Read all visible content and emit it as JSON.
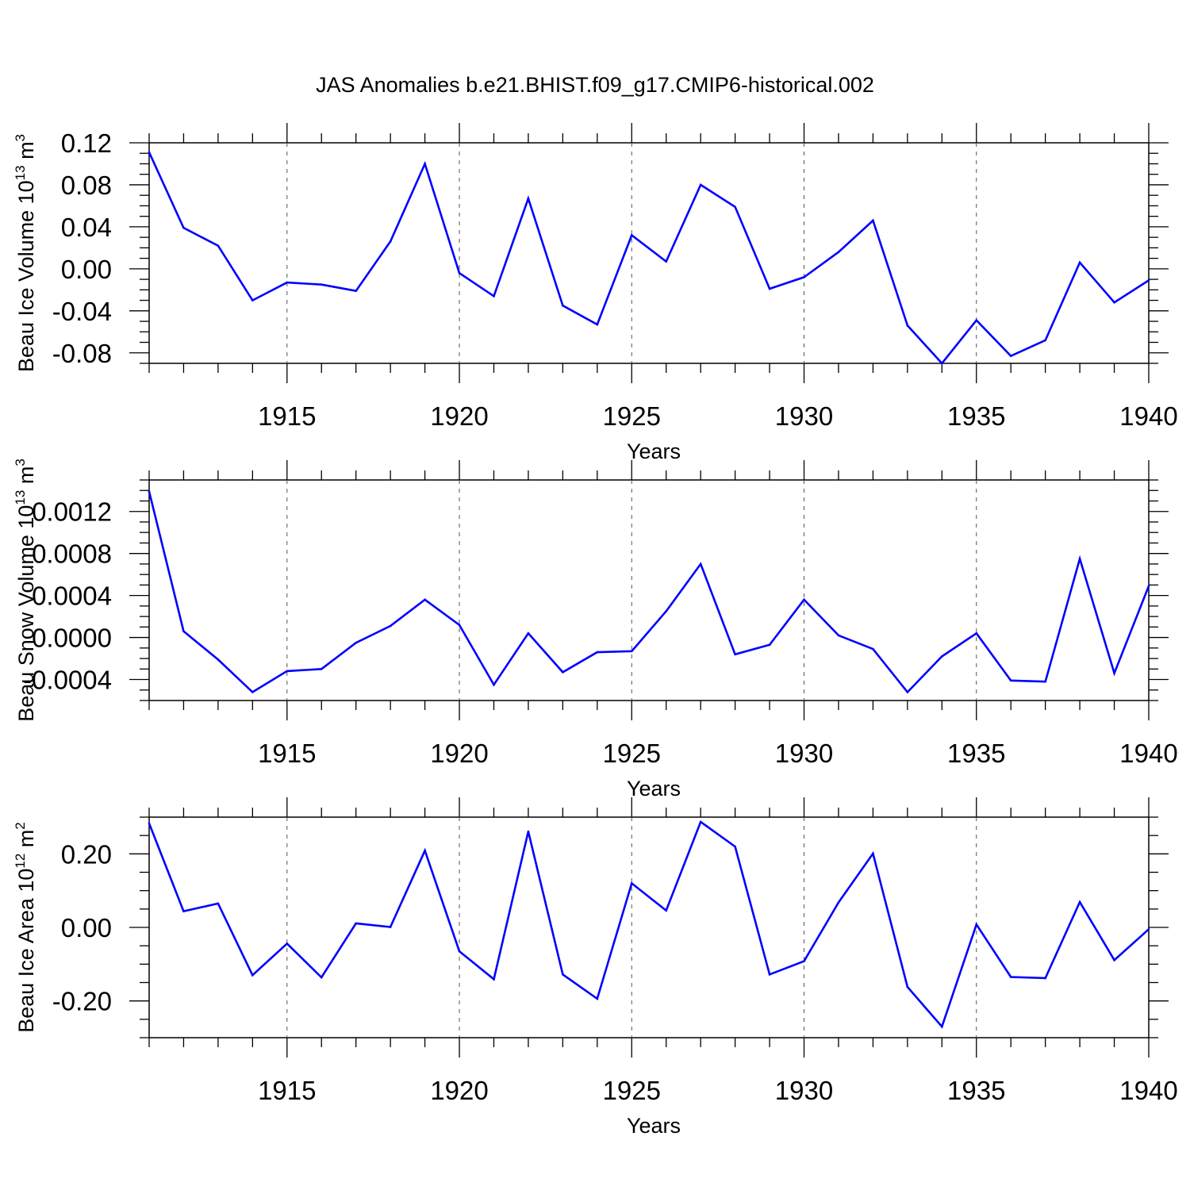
{
  "chart_data": {
    "title": "JAS Anomalies b.e21.BHIST.f09_g17.CMIP6-historical.002",
    "type": "line",
    "line_color": "#0000ff",
    "x": [
      1911,
      1912,
      1913,
      1914,
      1915,
      1916,
      1917,
      1918,
      1919,
      1920,
      1921,
      1922,
      1923,
      1924,
      1925,
      1926,
      1927,
      1928,
      1929,
      1930,
      1931,
      1932,
      1933,
      1934,
      1935,
      1936,
      1937,
      1938,
      1939,
      1940
    ],
    "xlim": [
      1911,
      1940
    ],
    "xticks": [
      1915,
      1920,
      1925,
      1930,
      1935,
      1940
    ],
    "xlabel": "Years",
    "grid": "dashed vertical at major x ticks",
    "panels": [
      {
        "name": "ice-volume",
        "ylabel": {
          "text": "Beau Ice Volume 10",
          "exp": "13",
          "unit": " m",
          "unit_exp": "3"
        },
        "ylim": [
          -0.09,
          0.12
        ],
        "yticks": [
          {
            "value": 0.12,
            "label": "0.12"
          },
          {
            "value": 0.08,
            "label": "0.08"
          },
          {
            "value": 0.04,
            "label": "0.04"
          },
          {
            "value": 0.0,
            "label": "0.00"
          },
          {
            "value": -0.04,
            "label": "-0.04"
          },
          {
            "value": -0.08,
            "label": "-0.08"
          }
        ],
        "values": [
          0.111,
          0.039,
          0.022,
          -0.03,
          -0.013,
          -0.015,
          -0.021,
          0.026,
          0.1,
          -0.004,
          -0.026,
          0.067,
          -0.035,
          -0.053,
          0.032,
          0.007,
          0.08,
          0.059,
          -0.019,
          -0.008,
          0.016,
          0.046,
          -0.054,
          -0.09,
          -0.049,
          -0.083,
          -0.068,
          0.006,
          -0.032,
          -0.011
        ]
      },
      {
        "name": "snow-volume",
        "ylabel": {
          "text": "Beau Snow Volume 10",
          "exp": "13",
          "unit": " m",
          "unit_exp": "3"
        },
        "ylim": [
          -0.0006,
          0.0015
        ],
        "yticks": [
          {
            "value": 0.0012,
            "label": "0.0012"
          },
          {
            "value": 0.0008,
            "label": "0.0008"
          },
          {
            "value": 0.0004,
            "label": "0.0004"
          },
          {
            "value": 0.0,
            "label": "0.0000"
          },
          {
            "value": -0.0004,
            "label": "-0.0004"
          }
        ],
        "values": [
          0.00139,
          6e-05,
          -0.00021,
          -0.00052,
          -0.00032,
          -0.0003,
          -5e-05,
          0.00011,
          0.00036,
          0.00012,
          -0.00045,
          4e-05,
          -0.00033,
          -0.00014,
          -0.00013,
          0.00025,
          0.0007,
          -0.00016,
          -7e-05,
          0.00036,
          2e-05,
          -0.00011,
          -0.00052,
          -0.00018,
          4e-05,
          -0.00041,
          -0.00042,
          0.00075,
          -0.00034,
          0.00049
        ]
      },
      {
        "name": "ice-area",
        "ylabel": {
          "text": "Beau Ice Area 10",
          "exp": "12",
          "unit": " m",
          "unit_exp": "2"
        },
        "ylim": [
          -0.3,
          0.3
        ],
        "yticks": [
          {
            "value": 0.2,
            "label": "0.20"
          },
          {
            "value": 0.0,
            "label": "0.00"
          },
          {
            "value": -0.2,
            "label": "-0.20"
          }
        ],
        "values": [
          0.283,
          0.044,
          0.065,
          -0.13,
          -0.044,
          -0.136,
          0.011,
          0.001,
          0.209,
          -0.065,
          -0.141,
          0.261,
          -0.128,
          -0.194,
          0.12,
          0.046,
          0.287,
          0.22,
          -0.128,
          -0.092,
          0.068,
          0.201,
          -0.162,
          -0.27,
          0.008,
          -0.135,
          -0.138,
          0.069,
          -0.089,
          -0.005
        ]
      }
    ]
  }
}
